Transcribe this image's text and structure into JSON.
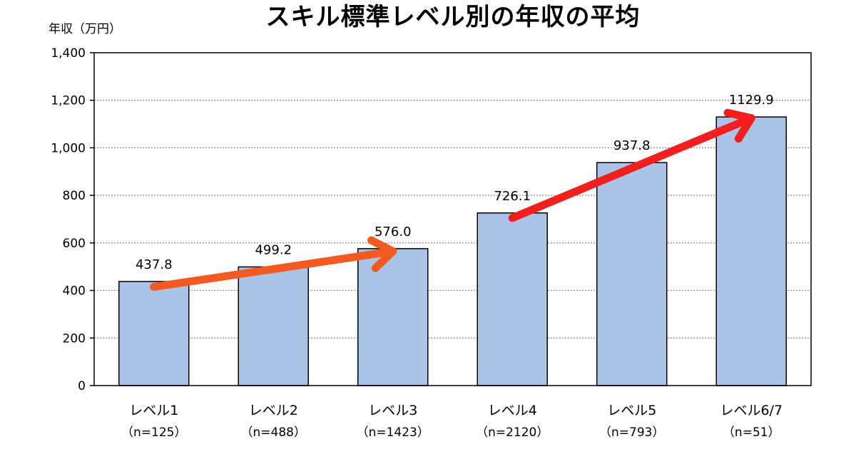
{
  "chart_data": {
    "type": "bar",
    "title": "スキル標準レベル別の年収の平均",
    "ylabel": "年収（万円）",
    "xlabel": "",
    "ylim": [
      0,
      1400
    ],
    "yticks": [
      0,
      200,
      400,
      600,
      800,
      1000,
      1200,
      1400
    ],
    "ytick_labels": [
      "0",
      "200",
      "400",
      "600",
      "800",
      "1,000",
      "1,200",
      "1,400"
    ],
    "categories": [
      "レベル1",
      "レベル2",
      "レベル3",
      "レベル4",
      "レベル5",
      "レベル6/7"
    ],
    "sample_sizes": [
      "（n=125）",
      "（n=488）",
      "（n=1423）",
      "（n=2120）",
      "（n=793）",
      "（n=51）"
    ],
    "values": [
      437.8,
      499.2,
      576.0,
      726.1,
      937.8,
      1129.9
    ],
    "value_labels": [
      "437.8",
      "499.2",
      "576.0",
      "726.1",
      "937.8",
      "1129.9"
    ],
    "grid": true,
    "bar_color": "#A9C4E6",
    "bar_edge_color": "#000000",
    "arrows": [
      {
        "from_category": 0,
        "from_value": 415,
        "to_category": 2,
        "to_value": 565,
        "color": "#F25A22"
      },
      {
        "from_category": 3,
        "from_value": 705,
        "to_category": 5,
        "to_value": 1125,
        "color": "#F21F1F"
      }
    ]
  }
}
